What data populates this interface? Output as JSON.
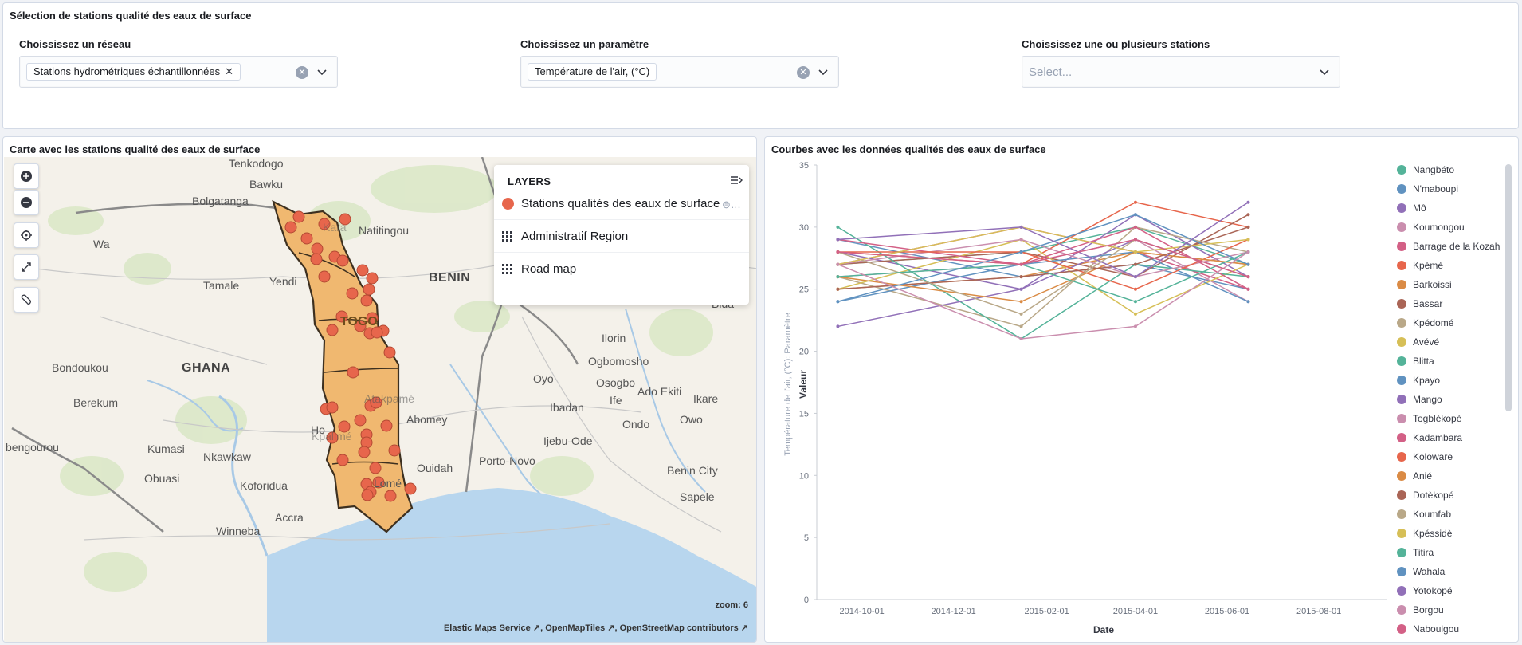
{
  "controls": {
    "title": "Sélection de stations qualité des eaux de surface",
    "reseau": {
      "label": "Choississez un réseau",
      "selected": "Stations hydrométriques échantillonnées"
    },
    "parametre": {
      "label": "Choississez un paramètre",
      "selected": "Température de l'air, (°C)"
    },
    "stations": {
      "label": "Choississez une ou plusieurs stations",
      "placeholder": "Select..."
    }
  },
  "map": {
    "title": "Carte avec les stations qualité des eaux de surface",
    "layers_title": "LAYERS",
    "layers": [
      {
        "name": "Stations qualités des eaux de surface",
        "icon": "red-circle-icon",
        "color": "#e7664c"
      },
      {
        "name": "Administratif Region",
        "icon": "grid-icon"
      },
      {
        "name": "Road map",
        "icon": "grid-icon"
      }
    ],
    "zoom_text": "zoom: 6",
    "attribution": [
      "Elastic Maps Service",
      "OpenMapTiles",
      "OpenStreetMap contributors"
    ],
    "attribution_sep": ",",
    "labels": {
      "tenkodogo": "Tenkodogo",
      "bawku": "Bawku",
      "bolgatanga": "Bolgatanga",
      "wa": "Wa",
      "natitingou": "Natitingou",
      "benin": "BENIN",
      "tamale": "Tamale",
      "yendi": "Yendi",
      "togo": "TOGO",
      "bida": "Bida",
      "ilorin": "Ilorin",
      "ghana": "GHANA",
      "bondoukou": "Bondoukou",
      "ogbomosho": "Ogbomosho",
      "oyo": "Oyo",
      "osogbo": "Osogbo",
      "ado_ekiti": "Ado Ekiti",
      "ikare": "Ikare",
      "berekum": "Berekum",
      "ibadan": "Ibadan",
      "ife": "Ife",
      "ondo": "Ondo",
      "owo": "Owo",
      "abomey": "Abomey",
      "ijebu_ode": "Ijebu-Ode",
      "bengourou": "bengourou",
      "kumasi": "Kumasi",
      "nkawkaw": "Nkawkaw",
      "porto_novo": "Porto-Novo",
      "benin_city": "Benin City",
      "obuasi": "Obuasi",
      "koforidua": "Koforidua",
      "sapele": "Sapele",
      "accra": "Accra",
      "winneba": "Winneba",
      "ouidah": "Ouidah",
      "lome": "Lomé",
      "ho": "Ho",
      "atakpame": "Atakpamé",
      "kpalime": "Kpalimé",
      "kara": "Kara"
    }
  },
  "chart": {
    "title": "Courbes avec les données qualités des eaux de surface"
  },
  "chart_data": {
    "type": "line",
    "xlabel": "Date",
    "ylabel": "Valeur",
    "ylabel2": "Température de l'air, (°C): Paramètre",
    "ylim": [
      0,
      35
    ],
    "yticks": [
      0,
      5,
      10,
      15,
      20,
      25,
      30,
      35
    ],
    "xticks": [
      "2014-10-01",
      "2014-12-01",
      "2015-02-01",
      "2015-04-01",
      "2015-06-01",
      "2015-08-01"
    ],
    "xlim": [
      "2014-09-01",
      "2015-09-15"
    ],
    "x": [
      "2014-09-15",
      "2015-01-15",
      "2015-04-01",
      "2015-06-15"
    ],
    "series": [
      {
        "name": "Nangbéto",
        "color": "#54b399",
        "values": [
          27,
          28,
          30,
          27
        ]
      },
      {
        "name": "N'maboupi",
        "color": "#6092c0",
        "values": [
          29,
          26,
          27,
          25
        ]
      },
      {
        "name": "Mô",
        "color": "#9170b8",
        "values": [
          28,
          25,
          31,
          26
        ]
      },
      {
        "name": "Koumongou",
        "color": "#ca8eae",
        "values": [
          26,
          27,
          29,
          24
        ]
      },
      {
        "name": "Barrage de la Kozah",
        "color": "#d36086",
        "values": [
          27,
          30,
          28,
          25
        ]
      },
      {
        "name": "Kpémé",
        "color": "#e7664c",
        "values": [
          28,
          27,
          32,
          30
        ]
      },
      {
        "name": "Barkoissi",
        "color": "#da8b45",
        "values": [
          25,
          26,
          28,
          27
        ]
      },
      {
        "name": "Bassar",
        "color": "#aa6556",
        "values": [
          27,
          28,
          26,
          31
        ]
      },
      {
        "name": "Kpédomé",
        "color": "#b9a888",
        "values": [
          26,
          22,
          30,
          28
        ]
      },
      {
        "name": "Avévé",
        "color": "#d6bf57",
        "values": [
          25,
          29,
          23,
          27
        ]
      },
      {
        "name": "Blitta",
        "color": "#54b399",
        "values": [
          30,
          21,
          27,
          26
        ]
      },
      {
        "name": "Kpayo",
        "color": "#6092c0",
        "values": [
          24,
          27,
          28,
          24
        ]
      },
      {
        "name": "Mango",
        "color": "#9170b8",
        "values": [
          22,
          25,
          29,
          26
        ]
      },
      {
        "name": "Togblékopé",
        "color": "#ca8eae",
        "values": [
          27,
          29,
          26,
          28
        ]
      },
      {
        "name": "Kadambara",
        "color": "#d36086",
        "values": [
          29,
          27,
          30,
          25
        ]
      },
      {
        "name": "Koloware",
        "color": "#e7664c",
        "values": [
          28,
          28,
          25,
          29
        ]
      },
      {
        "name": "Anié",
        "color": "#da8b45",
        "values": [
          26,
          24,
          28,
          27
        ]
      },
      {
        "name": "Dotèkopé",
        "color": "#aa6556",
        "values": [
          25,
          26,
          27,
          30
        ]
      },
      {
        "name": "Koumfab",
        "color": "#b9a888",
        "values": [
          28,
          23,
          29,
          26
        ]
      },
      {
        "name": "Kpéssidè",
        "color": "#d6bf57",
        "values": [
          27,
          30,
          28,
          29
        ]
      },
      {
        "name": "Titira",
        "color": "#54b399",
        "values": [
          26,
          27,
          24,
          28
        ]
      },
      {
        "name": "Wahala",
        "color": "#6092c0",
        "values": [
          24,
          28,
          31,
          27
        ]
      },
      {
        "name": "Yotokopé",
        "color": "#9170b8",
        "values": [
          29,
          30,
          26,
          32
        ]
      },
      {
        "name": "Borgou",
        "color": "#ca8eae",
        "values": [
          27,
          21,
          22,
          28
        ]
      },
      {
        "name": "Naboulgou",
        "color": "#d36086",
        "values": [
          28,
          27,
          29,
          26
        ]
      }
    ]
  }
}
